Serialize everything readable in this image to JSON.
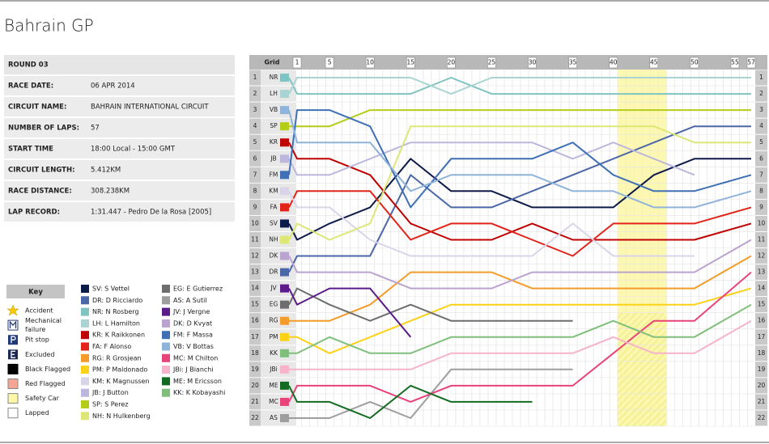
{
  "header": {
    "title": "Bahrain GP"
  },
  "race_info": {
    "title": "ROUND 03",
    "rows": [
      [
        "RACE DATE:",
        "06 APR 2014"
      ],
      [
        "CIRCUIT NAME:",
        "BAHRAIN INTERNATIONAL CIRCUIT"
      ],
      [
        "NUMBER OF LAPS:",
        "57"
      ],
      [
        "START TIME",
        "18:00 Local - 15:00 GMT"
      ],
      [
        "CIRCUIT LENGTH:",
        "5.412KM"
      ],
      [
        "RACE DISTANCE:",
        "308.238KM"
      ],
      [
        "LAP RECORD:",
        "1:31.447 - Pedro De la Rosa [2005]"
      ]
    ]
  },
  "key": {
    "title": "Key",
    "items": [
      "Accident",
      "Mechanical failure",
      "Pit stop",
      "Excluded",
      "Black Flagged",
      "Red Flagged",
      "Safety Car",
      "Lapped"
    ]
  },
  "chart_data": {
    "type": "line",
    "grid_label": "Grid",
    "x": [
      0,
      1,
      5,
      10,
      15,
      20,
      25,
      30,
      35,
      40,
      45,
      50,
      57
    ],
    "xlim": [
      0,
      57.5
    ],
    "xticks": [
      1,
      5,
      10,
      15,
      20,
      25,
      30,
      35,
      40,
      45,
      50,
      55,
      57
    ],
    "ylim": [
      22.5,
      0.5
    ],
    "yticks": [
      1,
      2,
      3,
      4,
      5,
      6,
      7,
      8,
      9,
      10,
      11,
      12,
      13,
      14,
      15,
      16,
      17,
      18,
      19,
      20,
      21,
      22
    ],
    "safety_car": {
      "start_lap": 41,
      "end_lap": 46
    },
    "safety_car_color": "#fbf59a",
    "series": [
      {
        "code": "SV",
        "name": "SV: S Vettel",
        "color": "#0d1b4a",
        "values": [
          10,
          11,
          10,
          9,
          6,
          8,
          8,
          9,
          9,
          9,
          7,
          6,
          6
        ]
      },
      {
        "code": "DR",
        "name": "DR: D Ricciardo",
        "color": "#4b67a8",
        "values": [
          13,
          12,
          12,
          12,
          7,
          9,
          9,
          8,
          7,
          6,
          5,
          4,
          4
        ]
      },
      {
        "code": "NR",
        "name": "NR: N Rosberg",
        "color": "#7fc4c0",
        "values": [
          1,
          2,
          2,
          2,
          2,
          1,
          2,
          2,
          2,
          2,
          2,
          2,
          2
        ]
      },
      {
        "code": "LH",
        "name": "LH: L Hamilton",
        "color": "#a9d4d2",
        "values": [
          2,
          1,
          1,
          1,
          1,
          2,
          1,
          1,
          1,
          1,
          1,
          1,
          1
        ]
      },
      {
        "code": "KR",
        "name": "KR: K Raikkonen",
        "color": "#c00000",
        "values": [
          5,
          6,
          6,
          7,
          10,
          11,
          11,
          10,
          11,
          11,
          11,
          11,
          10
        ]
      },
      {
        "code": "FA",
        "name": "FA: F Alonso",
        "color": "#e2231a",
        "values": [
          9,
          8,
          8,
          8,
          11,
          10,
          10,
          11,
          12,
          10,
          10,
          10,
          9
        ]
      },
      {
        "code": "RG",
        "name": "RG: R Grosjean",
        "color": "#f39c2a",
        "values": [
          16,
          16,
          16,
          15,
          13,
          13,
          13,
          14,
          14,
          14,
          14,
          14,
          12
        ]
      },
      {
        "code": "PM",
        "name": "PM: P Maldonado",
        "color": "#fcd116",
        "values": [
          17,
          17,
          18,
          17,
          16,
          15,
          15,
          15,
          15,
          15,
          15,
          15,
          14
        ]
      },
      {
        "code": "KM",
        "name": "KM: K Magnussen",
        "color": "#d9d4e8",
        "values": [
          8,
          9,
          9,
          11,
          12,
          12,
          12,
          12,
          10,
          12,
          12,
          12,
          null
        ]
      },
      {
        "code": "JB",
        "name": "JB: J Button",
        "color": "#bcb7dd",
        "values": [
          6,
          7,
          7,
          6,
          5,
          5,
          5,
          5,
          6,
          5,
          6,
          7,
          null
        ]
      },
      {
        "code": "SP",
        "name": "SP: S Perez",
        "color": "#b5cc18",
        "values": [
          4,
          4,
          4,
          3,
          3,
          3,
          3,
          3,
          3,
          3,
          3,
          3,
          3
        ]
      },
      {
        "code": "NH",
        "name": "NH: N Hulkenberg",
        "color": "#dce775",
        "values": [
          11,
          10,
          11,
          10,
          4,
          4,
          4,
          4,
          4,
          4,
          4,
          5,
          5
        ]
      },
      {
        "code": "EG",
        "name": "EG: E Gutierrez",
        "color": "#6e6e6e",
        "values": [
          15,
          14,
          15,
          16,
          15,
          16,
          16,
          16,
          16,
          null,
          null,
          null,
          null
        ]
      },
      {
        "code": "AS",
        "name": "AS: A Sutil",
        "color": "#9e9e9e",
        "values": [
          22,
          22,
          22,
          21,
          22,
          19,
          19,
          19,
          19,
          null,
          null,
          null,
          null
        ]
      },
      {
        "code": "JV",
        "name": "JV: J Vergne",
        "color": "#5b1b8b",
        "values": [
          14,
          15,
          14,
          14,
          17,
          null,
          null,
          null,
          null,
          null,
          null,
          null,
          null
        ]
      },
      {
        "code": "DK",
        "name": "DK: D Kvyat",
        "color": "#bba3cf",
        "values": [
          12,
          13,
          13,
          13,
          14,
          14,
          14,
          13,
          13,
          13,
          13,
          13,
          11
        ]
      },
      {
        "code": "FM",
        "name": "FM: F Massa",
        "color": "#3f6fb5",
        "values": [
          7,
          3,
          3,
          4,
          9,
          6,
          6,
          6,
          5,
          7,
          8,
          8,
          7
        ]
      },
      {
        "code": "VB",
        "name": "VB: V Bottas",
        "color": "#8fb3d9",
        "values": [
          3,
          5,
          5,
          5,
          8,
          7,
          7,
          7,
          8,
          8,
          9,
          9,
          8
        ]
      },
      {
        "code": "MC",
        "name": "MC: M Chilton",
        "color": "#e8447a",
        "values": [
          21,
          20,
          20,
          20,
          21,
          20,
          20,
          20,
          20,
          18,
          16,
          16,
          13
        ]
      },
      {
        "code": "JBi",
        "name": "JBi: J Bianchi",
        "color": "#f6b3c9",
        "values": [
          19,
          19,
          19,
          19,
          19,
          18,
          18,
          18,
          18,
          17,
          18,
          18,
          16
        ]
      },
      {
        "code": "ME",
        "name": "ME: M Ericsson",
        "color": "#126b20",
        "values": [
          20,
          21,
          21,
          22,
          20,
          21,
          21,
          21,
          null,
          null,
          null,
          null,
          null
        ]
      },
      {
        "code": "KK",
        "name": "KK: K Kobayashi",
        "color": "#7fbf7b",
        "values": [
          18,
          18,
          17,
          18,
          18,
          17,
          17,
          17,
          17,
          16,
          17,
          17,
          15
        ]
      }
    ]
  }
}
